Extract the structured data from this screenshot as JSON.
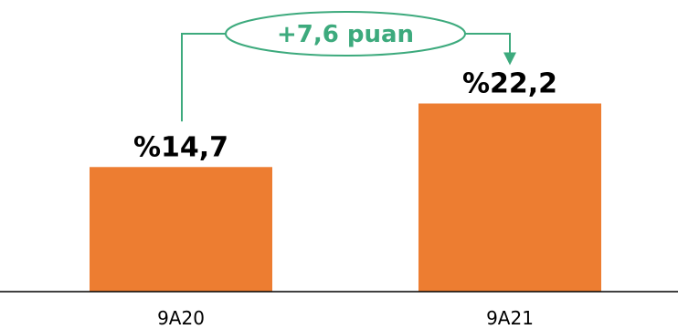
{
  "colors": {
    "bar": "#ED7D31",
    "annotation": "#3DAA7D",
    "axis": "#000000",
    "text": "#000000"
  },
  "chart_data": {
    "type": "bar",
    "categories": [
      "9A20",
      "9A21"
    ],
    "values": [
      14.7,
      22.2
    ],
    "value_labels": [
      "%14,7",
      "%22,2"
    ],
    "annotation": {
      "text": "+7,6 puan",
      "from": "9A20",
      "to": "9A21"
    },
    "title": "",
    "xlabel": "",
    "ylabel": "",
    "ylim": [
      0,
      32
    ],
    "grid": false,
    "legend": "none"
  }
}
